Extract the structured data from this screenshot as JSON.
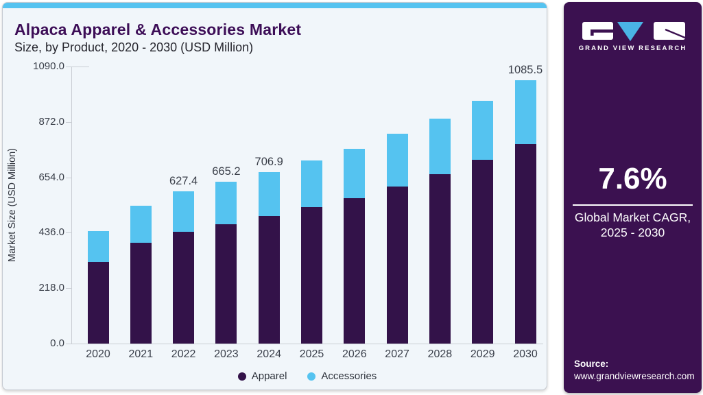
{
  "header": {
    "title": "Alpaca Apparel & Accessories Market",
    "subtitle": "Size, by Product, 2020 - 2030 (USD Million)"
  },
  "sidebar": {
    "brand": "GRAND VIEW RESEARCH",
    "cagr_value": "7.6%",
    "cagr_line1": "Global Market CAGR,",
    "cagr_line2": "2025 - 2030",
    "source_label": "Source:",
    "source_url": "www.grandviewresearch.com",
    "bg_color": "#3b1150"
  },
  "colors": {
    "accent_blue": "#55c3f0",
    "logo_triangle_blue": "#4ab4e6",
    "dark_purple": "#331249",
    "title_purple": "#3d0e57",
    "card_bg": "#f1f6fa"
  },
  "chart_data": {
    "type": "bar",
    "stacked": true,
    "title": "Alpaca Apparel & Accessories Market Size, by Product, 2020 - 2030 (USD Million)",
    "categories": [
      "2020",
      "2021",
      "2022",
      "2023",
      "2024",
      "2025",
      "2026",
      "2027",
      "2028",
      "2029",
      "2030"
    ],
    "series": [
      {
        "name": "Apparel",
        "color": "#331249",
        "values": [
          336,
          416,
          460.0,
          491.0,
          524.0,
          561,
          598,
          648,
          697,
          756,
          821.0
        ]
      },
      {
        "name": "Accessories",
        "color": "#55c3f0",
        "values": [
          127,
          151,
          167.4,
          174.2,
          182.9,
          192,
          204,
          215,
          230,
          244,
          264.5
        ]
      }
    ],
    "totals": [
      463,
      567,
      627.4,
      665.2,
      706.9,
      753,
      802,
      863,
      927,
      1000,
      1085.5
    ],
    "total_labels": {
      "2022": "627.4",
      "2023": "665.2",
      "2024": "706.9",
      "2030": "1085.5"
    },
    "ylabel": "Market Size (USD Million)",
    "xlabel": "",
    "yticks": [
      "1090.0",
      "872.0",
      "654.0",
      "436.0",
      "218.0",
      "0.0"
    ],
    "ytick_values": [
      1090,
      872,
      654,
      436,
      218,
      0
    ],
    "ylim": [
      0,
      1090
    ],
    "grid": false,
    "legend": [
      "Apparel",
      "Accessories"
    ],
    "legend_position": "bottom"
  }
}
